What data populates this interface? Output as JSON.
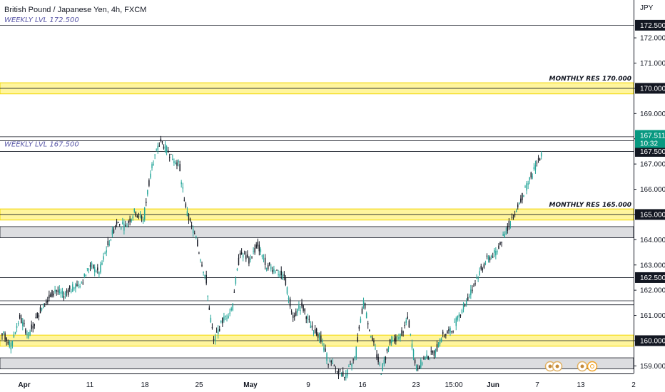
{
  "chart_data": {
    "type": "candlestick",
    "title": "British Pound / Japanese Yen, 4h, FXCM",
    "currency": "JPY",
    "ylim": [
      158.7,
      173.5
    ],
    "y_ticks": [
      159,
      160,
      161,
      162,
      163,
      164,
      165,
      166,
      167,
      168,
      169,
      170,
      171,
      172
    ],
    "y_tick_labels": [
      "159.000",
      "160.000",
      "161.000",
      "162.000",
      "163.000",
      "164.000",
      "165.000",
      "166.000",
      "167.000",
      "168.000",
      "169.000",
      "170.000",
      "171.000",
      "172.000"
    ],
    "x_ticks": [
      {
        "label": "Apr",
        "bold": true
      },
      {
        "label": "11",
        "bold": false
      },
      {
        "label": "18",
        "bold": false
      },
      {
        "label": "25",
        "bold": false
      },
      {
        "label": "May",
        "bold": true
      },
      {
        "label": "9",
        "bold": false
      },
      {
        "label": "16",
        "bold": false
      },
      {
        "label": "23",
        "bold": false
      },
      {
        "label": "15:00",
        "bold": false
      },
      {
        "label": "Jun",
        "bold": true
      },
      {
        "label": "7",
        "bold": false
      },
      {
        "label": "13",
        "bold": false
      },
      {
        "label": "2",
        "bold": false
      }
    ],
    "closes": [
      160.3,
      159.8,
      160.9,
      160.2,
      161.0,
      161.6,
      162.0,
      161.8,
      162.1,
      162.3,
      163.0,
      162.7,
      163.8,
      164.7,
      164.5,
      165.1,
      164.8,
      167.0,
      167.9,
      167.4,
      167.0,
      165.0,
      164.0,
      162.6,
      160.0,
      160.8,
      161.2,
      163.5,
      163.2,
      163.8,
      163.0,
      162.8,
      162.5,
      161.0,
      161.4,
      160.6,
      160.2,
      159.2,
      158.8,
      158.6,
      159.3,
      161.5,
      160.0,
      158.8,
      159.9,
      160.1,
      160.8,
      158.9,
      159.3,
      159.5,
      160.2,
      160.4,
      161.1,
      161.8,
      162.6,
      163.2,
      163.5,
      164.2,
      165.0,
      165.7,
      166.5,
      167.3,
      167.5
    ],
    "current_price": "167.511",
    "countdown": "10:32",
    "levels": [
      {
        "price": 172.5,
        "label": "172.500",
        "style": "black-line",
        "text": "WEEKLY LVL 172.500",
        "text_pos": "top-left"
      },
      {
        "price": 170.0,
        "label": "170.000",
        "style": "yellow-band",
        "text": "MONTHLY RES 170.000",
        "text_pos": "right"
      },
      {
        "price": 168.0,
        "label": "",
        "style": "black-pair",
        "text": "",
        "text_pos": ""
      },
      {
        "price": 167.5,
        "label": "167.500",
        "style": "black-line",
        "text": "WEEKLY LVL 167.500",
        "text_pos": "left"
      },
      {
        "price": 165.0,
        "label": "165.000",
        "style": "yellow-band",
        "text": "MONTHLY RES 165.000",
        "text_pos": "right"
      },
      {
        "price": 164.3,
        "label": "",
        "style": "grey-band",
        "text": "",
        "text_pos": ""
      },
      {
        "price": 162.5,
        "label": "162.500",
        "style": "black-line",
        "text": "",
        "text_pos": ""
      },
      {
        "price": 161.5,
        "label": "",
        "style": "black-pair",
        "text": "",
        "text_pos": ""
      },
      {
        "price": 160.0,
        "label": "160.000",
        "style": "yellow-band",
        "text": "",
        "text_pos": ""
      },
      {
        "price": 159.1,
        "label": "",
        "style": "grey-band",
        "text": "",
        "text_pos": ""
      }
    ]
  },
  "colors": {
    "up": "#26a69a",
    "down": "#131722",
    "yellow": "#fff59d",
    "yellow_edge": "#f2d600",
    "grey_band": "#dcdde0",
    "weekly_text": "#5a58a8",
    "current_tag": "#089981"
  }
}
